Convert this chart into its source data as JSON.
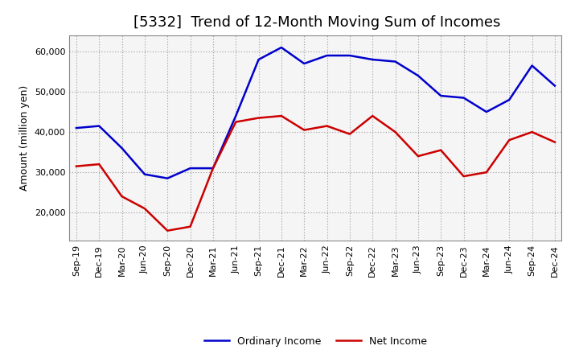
{
  "title": "[5332]  Trend of 12-Month Moving Sum of Incomes",
  "ylabel": "Amount (million yen)",
  "x_labels": [
    "Sep-19",
    "Dec-19",
    "Mar-20",
    "Jun-20",
    "Sep-20",
    "Dec-20",
    "Mar-21",
    "Jun-21",
    "Sep-21",
    "Dec-21",
    "Mar-22",
    "Jun-22",
    "Sep-22",
    "Dec-22",
    "Mar-23",
    "Jun-23",
    "Sep-23",
    "Dec-23",
    "Mar-24",
    "Jun-24",
    "Sep-24",
    "Dec-24"
  ],
  "ordinary_income": [
    41000,
    41500,
    36000,
    29500,
    28500,
    31000,
    31000,
    44000,
    58000,
    61000,
    57000,
    59000,
    59000,
    58000,
    57500,
    54000,
    49000,
    48500,
    45000,
    48000,
    56500,
    51500
  ],
  "net_income": [
    31500,
    32000,
    24000,
    21000,
    15500,
    16500,
    31000,
    42500,
    43500,
    44000,
    40500,
    41500,
    39500,
    44000,
    40000,
    34000,
    35500,
    29000,
    30000,
    38000,
    40000,
    37500
  ],
  "ordinary_color": "#0000cc",
  "net_color": "#cc0000",
  "ylim_min": 13000,
  "ylim_max": 64000,
  "yticks": [
    20000,
    30000,
    40000,
    50000,
    60000
  ],
  "background_color": "#ffffff",
  "plot_bg_color": "#f5f5f5",
  "grid_color": "#999999",
  "title_fontsize": 13,
  "axis_label_fontsize": 9,
  "tick_fontsize": 8,
  "legend_labels": [
    "Ordinary Income",
    "Net Income"
  ]
}
